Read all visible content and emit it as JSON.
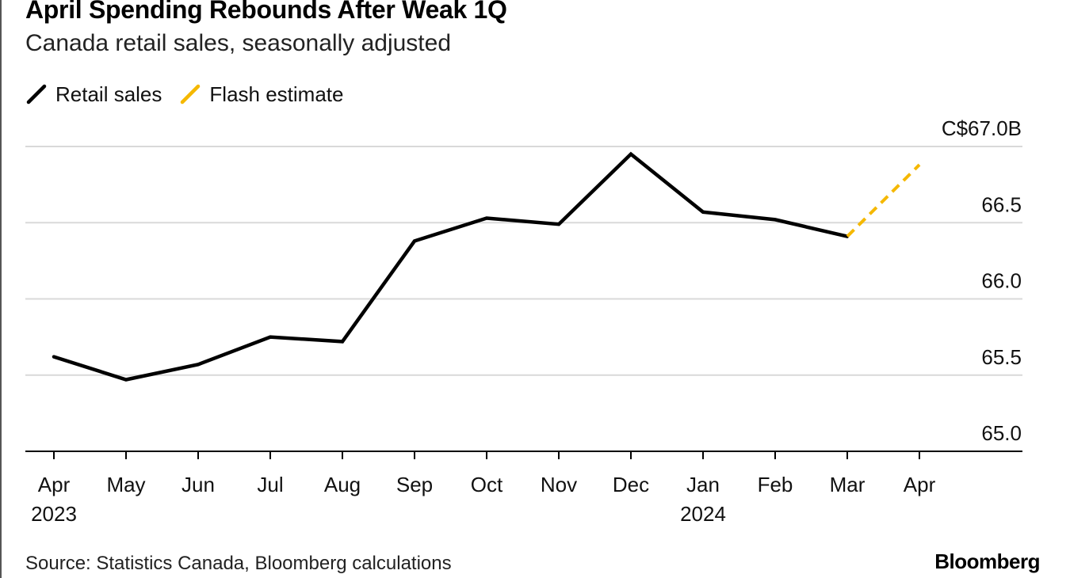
{
  "title": "April Spending Rebounds After Weak 1Q",
  "subtitle": "Canada retail sales, seasonally adjusted",
  "source": "Source: Statistics Canada, Bloomberg calculations",
  "brand": "Bloomberg",
  "colors": {
    "retail": "#000000",
    "flash": "#f5b800",
    "grid": "#d9d9d9",
    "axis": "#000000"
  },
  "chart_data": {
    "type": "line",
    "x": [
      "Apr",
      "May",
      "Jun",
      "Jul",
      "Aug",
      "Sep",
      "Oct",
      "Nov",
      "Dec",
      "Jan",
      "Feb",
      "Mar",
      "Apr"
    ],
    "year_labels": [
      "2023",
      "",
      "",
      "",
      "",
      "",
      "",
      "",
      "",
      "2024",
      "",
      "",
      ""
    ],
    "series": [
      {
        "name": "Retail sales",
        "style": "solid",
        "values": [
          65.62,
          65.47,
          65.57,
          65.75,
          65.72,
          66.38,
          66.53,
          66.49,
          66.95,
          66.57,
          66.52,
          66.41,
          null
        ]
      },
      {
        "name": "Flash estimate",
        "style": "dashed",
        "values": [
          null,
          null,
          null,
          null,
          null,
          null,
          null,
          null,
          null,
          null,
          null,
          66.41,
          66.88
        ]
      }
    ],
    "yticks": [
      {
        "value": 65.0,
        "label": "65.0"
      },
      {
        "value": 65.5,
        "label": "65.5"
      },
      {
        "value": 66.0,
        "label": "66.0"
      },
      {
        "value": 66.5,
        "label": "66.5"
      },
      {
        "value": 67.0,
        "label": "C$67.0B"
      }
    ],
    "ylim": [
      65.0,
      67.0
    ],
    "y_axis_side": "right",
    "grid": true,
    "legend_position": "top-left",
    "xlabel": "",
    "ylabel": ""
  }
}
